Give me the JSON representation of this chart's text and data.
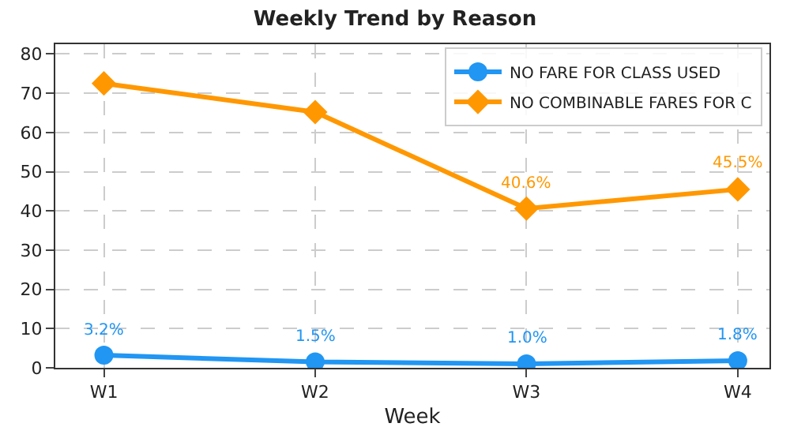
{
  "chart_data": {
    "type": "line",
    "title": "Weekly Trend by Reason",
    "xlabel": "Week",
    "categories": [
      "W1",
      "W2",
      "W3",
      "W4"
    ],
    "series": [
      {
        "name": "NO FARE FOR CLASS USED",
        "color": "#2196f3",
        "marker": "circle",
        "values": [
          3.2,
          1.5,
          1.0,
          1.8
        ],
        "value_labels": [
          "3.2%",
          "1.5%",
          "1.0%",
          "1.8%"
        ]
      },
      {
        "name": "NO COMBINABLE FARES FOR C",
        "color": "#ff9800",
        "marker": "diamond",
        "values": [
          72.5,
          65.2,
          40.6,
          45.5
        ],
        "value_labels": [
          null,
          null,
          "40.6%",
          "45.5%"
        ]
      }
    ],
    "ylim": [
      0,
      82.5
    ],
    "yticks": [
      0,
      10,
      20,
      30,
      40,
      50,
      60,
      70,
      80
    ],
    "grid": true,
    "legend": "top right",
    "line_style": "solid"
  }
}
